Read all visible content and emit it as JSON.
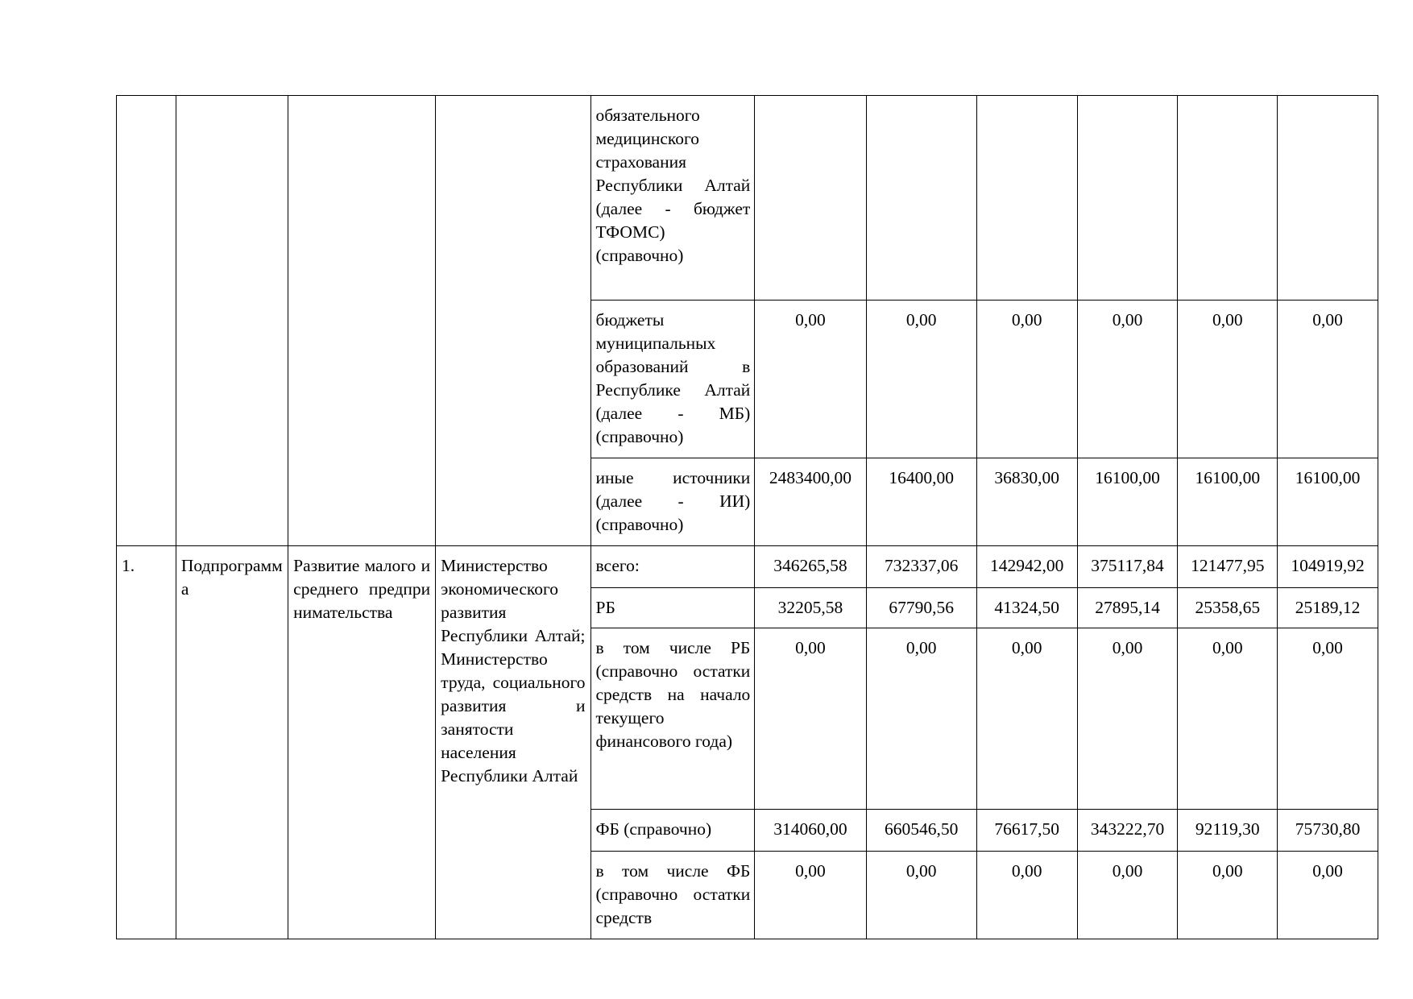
{
  "rows_top": [
    {
      "label": "обязательного медицинского страхования Республики Алтай (далее - бюджет ТФОМС) (справочно)",
      "values": [
        "",
        "",
        "",
        "",
        "",
        ""
      ]
    },
    {
      "label": "бюджеты муниципальных образований в Республике Алтай (далее - МБ) (справочно)",
      "values": [
        "0,00",
        "0,00",
        "0,00",
        "0,00",
        "0,00",
        "0,00"
      ]
    },
    {
      "label": "иные источники (далее - ИИ) (справочно)",
      "values": [
        "2483400,00",
        "16400,00",
        "36830,00",
        "16100,00",
        "16100,00",
        "16100,00"
      ]
    }
  ],
  "subprogram": {
    "number": "1.",
    "type": "Подпрограмма",
    "name": "Развитие малого и среднего предпринимательства",
    "executor": "Министерство экономического развития Республики Алтай; Министерство труда, социального развития и занятости населения Республики Алтай"
  },
  "rows_sub": [
    {
      "label": "всего:",
      "values": [
        "346265,58",
        "732337,06",
        "142942,00",
        "375117,84",
        "121477,95",
        "104919,92"
      ]
    },
    {
      "label": "РБ",
      "values": [
        "32205,58",
        "67790,56",
        "41324,50",
        "27895,14",
        "25358,65",
        "25189,12"
      ]
    },
    {
      "label": "в том числе РБ (справочно остатки средств на начало текущего финансового года)",
      "values": [
        "0,00",
        "0,00",
        "0,00",
        "0,00",
        "0,00",
        "0,00"
      ]
    },
    {
      "label": "ФБ (справочно)",
      "values": [
        "314060,00",
        "660546,50",
        "76617,50",
        "343222,70",
        "92119,30",
        "75730,80"
      ]
    },
    {
      "label": "в том числе ФБ (справочно остатки средств",
      "values": [
        "0,00",
        "0,00",
        "0,00",
        "0,00",
        "0,00",
        "0,00"
      ]
    }
  ]
}
